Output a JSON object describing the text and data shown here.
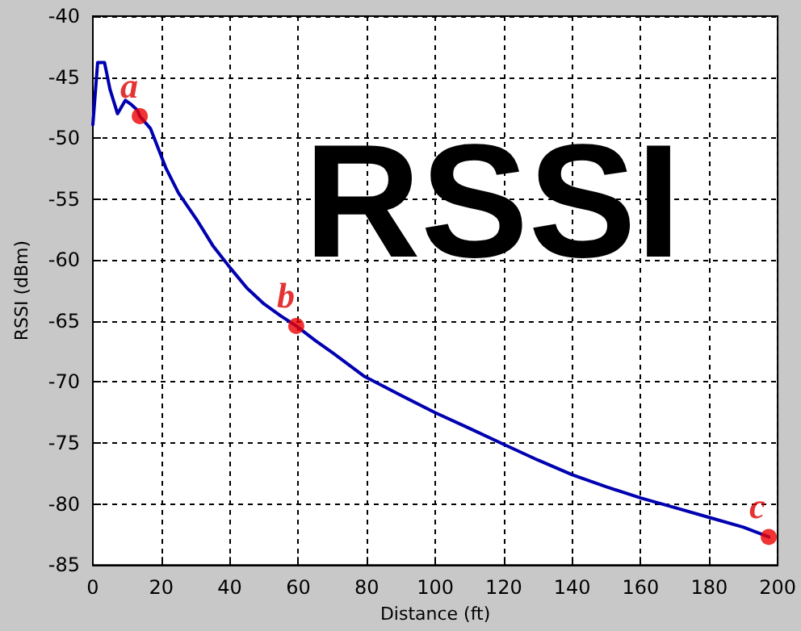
{
  "chart_data": {
    "type": "line",
    "title": "RSSI",
    "xlabel": "Distance (ft)",
    "ylabel": "RSSI (dBm)",
    "xlim": [
      0,
      200
    ],
    "xticks": [
      0,
      20,
      40,
      60,
      80,
      100,
      120,
      140,
      160,
      180,
      200
    ],
    "ylim": [
      -85,
      -40
    ],
    "yticks": [
      -85,
      -80,
      -75,
      -70,
      -65,
      -60,
      -55,
      -50,
      -45,
      -40
    ],
    "grid": true,
    "line_style": "solid",
    "series": [
      {
        "color": "#0000b0",
        "marker": "none",
        "x": [
          0,
          1.4,
          3.4,
          5,
          7.2,
          9.5,
          11,
          13,
          13.7,
          16.8,
          21.4,
          25,
          30.6,
          35,
          40,
          45,
          50,
          55,
          59.4,
          65,
          70,
          79.1,
          90,
          99.9,
          110,
          119.9,
          130,
          140,
          150,
          160,
          170,
          180,
          190,
          197.4
        ],
        "values": [
          -48.9,
          -43.8,
          -43.8,
          -46,
          -48,
          -46.9,
          -47.2,
          -47.7,
          -48.2,
          -49.2,
          -52.5,
          -54.5,
          -56.8,
          -58.8,
          -60.6,
          -62.3,
          -63.6,
          -64.6,
          -65.4,
          -66.6,
          -67.6,
          -69.5,
          -71.1,
          -72.5,
          -73.8,
          -75.1,
          -76.4,
          -77.6,
          -78.6,
          -79.5,
          -80.3,
          -81.1,
          -81.9,
          -82.7
        ]
      },
      {
        "type": "scatter",
        "color": "#ee0000",
        "marker": "circle",
        "x": [
          13.7,
          59.4,
          197.4
        ],
        "values": [
          -48.2,
          -65.4,
          -82.7
        ]
      }
    ],
    "annotations": [
      {
        "text": "a",
        "x": 13.7,
        "y": -48.2
      },
      {
        "text": "b",
        "x": 59.4,
        "y": -65.4
      },
      {
        "text": "c",
        "x": 197.4,
        "y": -82.7
      }
    ]
  }
}
